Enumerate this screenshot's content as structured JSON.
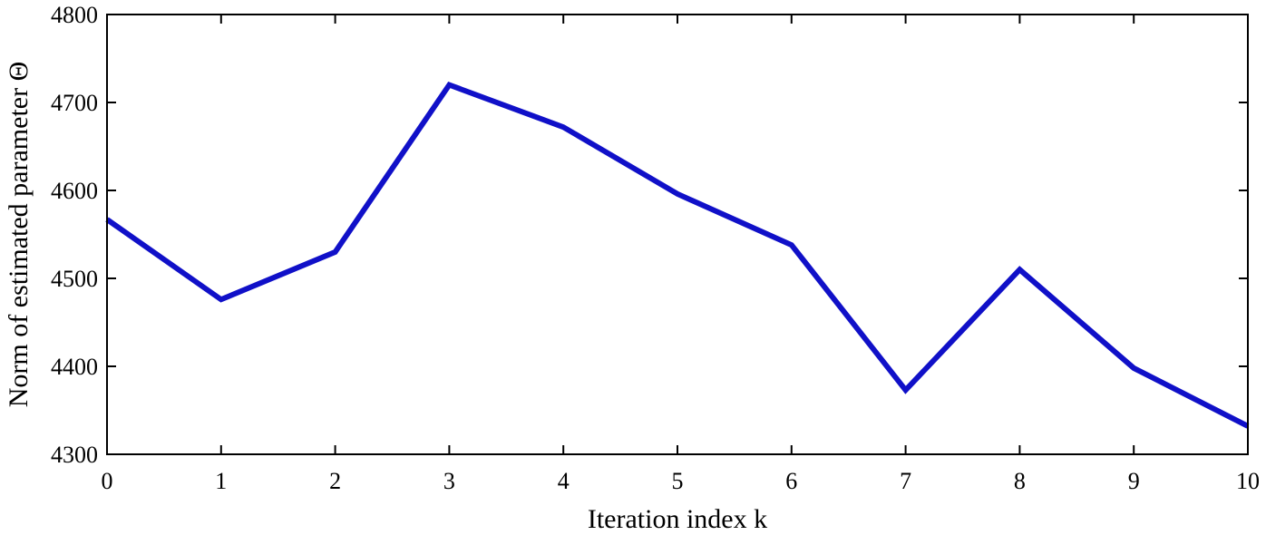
{
  "chart_data": {
    "type": "line",
    "xlabel": "Iteration index k",
    "ylabel": "Norm of estimated parameter Θ",
    "xlim": [
      0,
      10
    ],
    "ylim": [
      4300,
      4800
    ],
    "xticks": [
      0,
      1,
      2,
      3,
      4,
      5,
      6,
      7,
      8,
      9,
      10
    ],
    "yticks": [
      4300,
      4400,
      4500,
      4600,
      4700,
      4800
    ],
    "grid": false,
    "series": [
      {
        "color": "#1010c8",
        "x": [
          0,
          1,
          2,
          3,
          4,
          5,
          6,
          7,
          8,
          9,
          10
        ],
        "y": [
          4567,
          4476,
          4530,
          4720,
          4672,
          4596,
          4538,
          4373,
          4510,
          4398,
          4332
        ]
      }
    ]
  }
}
